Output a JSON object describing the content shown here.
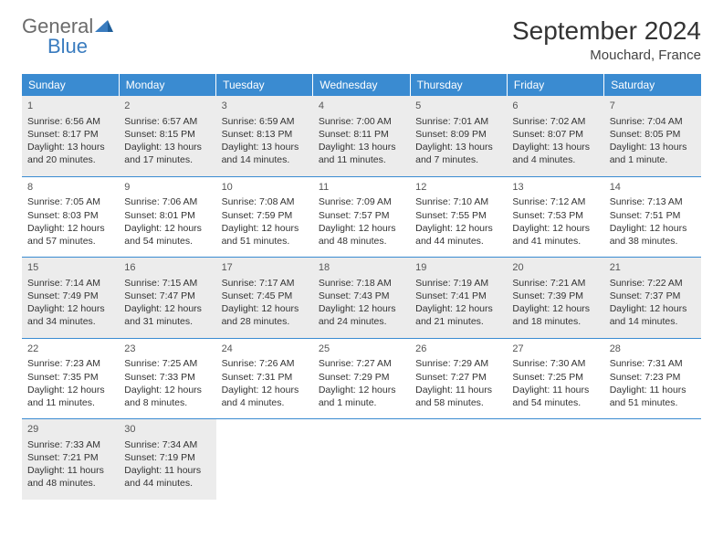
{
  "logo": {
    "text1": "General",
    "text2": "Blue"
  },
  "title": "September 2024",
  "location": "Mouchard, France",
  "day_headers": [
    "Sunday",
    "Monday",
    "Tuesday",
    "Wednesday",
    "Thursday",
    "Friday",
    "Saturday"
  ],
  "colors": {
    "header_bg": "#3a8bd1",
    "shaded_bg": "#ececec",
    "rule": "#3a8bd1",
    "logo_gray": "#6b6b6b",
    "logo_blue": "#3a7cbf"
  },
  "days": [
    {
      "n": 1,
      "sunrise": "6:56 AM",
      "sunset": "8:17 PM",
      "daylight": "13 hours and 20 minutes."
    },
    {
      "n": 2,
      "sunrise": "6:57 AM",
      "sunset": "8:15 PM",
      "daylight": "13 hours and 17 minutes."
    },
    {
      "n": 3,
      "sunrise": "6:59 AM",
      "sunset": "8:13 PM",
      "daylight": "13 hours and 14 minutes."
    },
    {
      "n": 4,
      "sunrise": "7:00 AM",
      "sunset": "8:11 PM",
      "daylight": "13 hours and 11 minutes."
    },
    {
      "n": 5,
      "sunrise": "7:01 AM",
      "sunset": "8:09 PM",
      "daylight": "13 hours and 7 minutes."
    },
    {
      "n": 6,
      "sunrise": "7:02 AM",
      "sunset": "8:07 PM",
      "daylight": "13 hours and 4 minutes."
    },
    {
      "n": 7,
      "sunrise": "7:04 AM",
      "sunset": "8:05 PM",
      "daylight": "13 hours and 1 minute."
    },
    {
      "n": 8,
      "sunrise": "7:05 AM",
      "sunset": "8:03 PM",
      "daylight": "12 hours and 57 minutes."
    },
    {
      "n": 9,
      "sunrise": "7:06 AM",
      "sunset": "8:01 PM",
      "daylight": "12 hours and 54 minutes."
    },
    {
      "n": 10,
      "sunrise": "7:08 AM",
      "sunset": "7:59 PM",
      "daylight": "12 hours and 51 minutes."
    },
    {
      "n": 11,
      "sunrise": "7:09 AM",
      "sunset": "7:57 PM",
      "daylight": "12 hours and 48 minutes."
    },
    {
      "n": 12,
      "sunrise": "7:10 AM",
      "sunset": "7:55 PM",
      "daylight": "12 hours and 44 minutes."
    },
    {
      "n": 13,
      "sunrise": "7:12 AM",
      "sunset": "7:53 PM",
      "daylight": "12 hours and 41 minutes."
    },
    {
      "n": 14,
      "sunrise": "7:13 AM",
      "sunset": "7:51 PM",
      "daylight": "12 hours and 38 minutes."
    },
    {
      "n": 15,
      "sunrise": "7:14 AM",
      "sunset": "7:49 PM",
      "daylight": "12 hours and 34 minutes."
    },
    {
      "n": 16,
      "sunrise": "7:15 AM",
      "sunset": "7:47 PM",
      "daylight": "12 hours and 31 minutes."
    },
    {
      "n": 17,
      "sunrise": "7:17 AM",
      "sunset": "7:45 PM",
      "daylight": "12 hours and 28 minutes."
    },
    {
      "n": 18,
      "sunrise": "7:18 AM",
      "sunset": "7:43 PM",
      "daylight": "12 hours and 24 minutes."
    },
    {
      "n": 19,
      "sunrise": "7:19 AM",
      "sunset": "7:41 PM",
      "daylight": "12 hours and 21 minutes."
    },
    {
      "n": 20,
      "sunrise": "7:21 AM",
      "sunset": "7:39 PM",
      "daylight": "12 hours and 18 minutes."
    },
    {
      "n": 21,
      "sunrise": "7:22 AM",
      "sunset": "7:37 PM",
      "daylight": "12 hours and 14 minutes."
    },
    {
      "n": 22,
      "sunrise": "7:23 AM",
      "sunset": "7:35 PM",
      "daylight": "12 hours and 11 minutes."
    },
    {
      "n": 23,
      "sunrise": "7:25 AM",
      "sunset": "7:33 PM",
      "daylight": "12 hours and 8 minutes."
    },
    {
      "n": 24,
      "sunrise": "7:26 AM",
      "sunset": "7:31 PM",
      "daylight": "12 hours and 4 minutes."
    },
    {
      "n": 25,
      "sunrise": "7:27 AM",
      "sunset": "7:29 PM",
      "daylight": "12 hours and 1 minute."
    },
    {
      "n": 26,
      "sunrise": "7:29 AM",
      "sunset": "7:27 PM",
      "daylight": "11 hours and 58 minutes."
    },
    {
      "n": 27,
      "sunrise": "7:30 AM",
      "sunset": "7:25 PM",
      "daylight": "11 hours and 54 minutes."
    },
    {
      "n": 28,
      "sunrise": "7:31 AM",
      "sunset": "7:23 PM",
      "daylight": "11 hours and 51 minutes."
    },
    {
      "n": 29,
      "sunrise": "7:33 AM",
      "sunset": "7:21 PM",
      "daylight": "11 hours and 48 minutes."
    },
    {
      "n": 30,
      "sunrise": "7:34 AM",
      "sunset": "7:19 PM",
      "daylight": "11 hours and 44 minutes."
    }
  ],
  "labels": {
    "sunrise": "Sunrise: ",
    "sunset": "Sunset: ",
    "daylight": "Daylight: "
  }
}
